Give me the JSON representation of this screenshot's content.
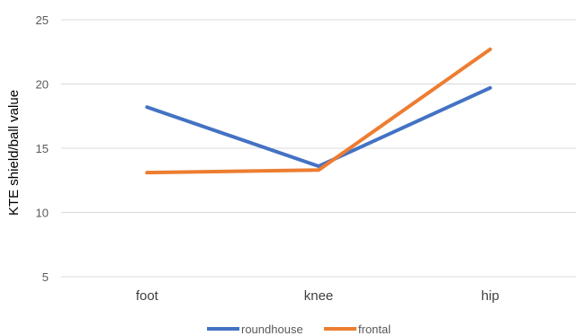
{
  "chart_data": {
    "type": "line",
    "categories": [
      "foot",
      "knee",
      "hip"
    ],
    "series": [
      {
        "name": "roundhouse",
        "values": [
          18.2,
          13.6,
          19.7
        ],
        "color": "#4472C4"
      },
      {
        "name": "frontal",
        "values": [
          13.1,
          13.3,
          22.7
        ],
        "color": "#ED7D31"
      }
    ],
    "ylabel": "KTE shield/ball value",
    "xlabel": "",
    "ylim": [
      5,
      25
    ],
    "yticks": [
      5,
      10,
      15,
      20,
      25
    ],
    "grid": true,
    "legend_position": "bottom"
  }
}
